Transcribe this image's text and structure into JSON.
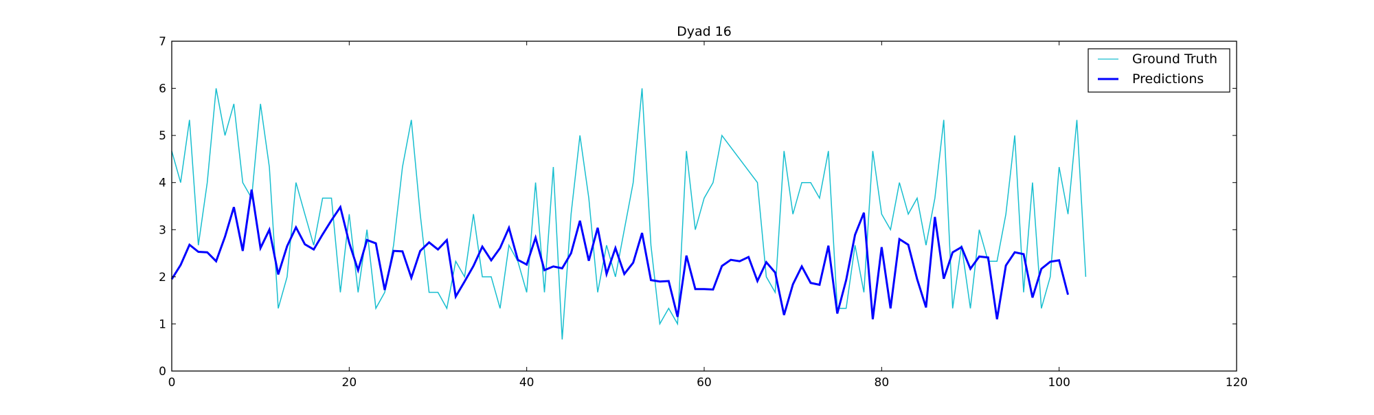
{
  "chart_data": {
    "type": "line",
    "title": "Dyad 16",
    "xlabel": "",
    "ylabel": "",
    "xlim": [
      0,
      120
    ],
    "ylim": [
      0,
      7
    ],
    "xticks": [
      0,
      20,
      40,
      60,
      80,
      100,
      120
    ],
    "yticks": [
      0,
      1,
      2,
      3,
      4,
      5,
      6,
      7
    ],
    "grid": false,
    "legend_position": "top-right",
    "series": [
      {
        "name": "Ground Truth",
        "color": "#17becf",
        "values": [
          4.67,
          4.0,
          5.33,
          2.67,
          4.0,
          6.0,
          5.0,
          5.67,
          4.0,
          3.67,
          5.67,
          4.33,
          1.33,
          2.0,
          4.0,
          3.33,
          2.67,
          3.67,
          3.67,
          1.67,
          3.33,
          1.67,
          3.0,
          1.33,
          1.67,
          2.67,
          4.33,
          5.33,
          3.33,
          1.67,
          1.67,
          1.33,
          2.33,
          2.0,
          3.33,
          2.0,
          2.0,
          1.33,
          2.67,
          2.33,
          1.67,
          4.0,
          1.67,
          4.33,
          0.67,
          3.33,
          5.0,
          3.67,
          1.67,
          2.67,
          2.0,
          3.0,
          4.0,
          6.0,
          2.67,
          1.0,
          1.33,
          1.0,
          4.67,
          3.0,
          3.67,
          4.0,
          5.0,
          4.75,
          4.5,
          4.25,
          4.0,
          2.0,
          1.67,
          4.67,
          3.33,
          4.0,
          4.0,
          3.67,
          4.67,
          1.33,
          1.33,
          2.67,
          1.67,
          4.67,
          3.33,
          3.0,
          4.0,
          3.33,
          3.67,
          2.67,
          3.67,
          5.33,
          1.33,
          2.67,
          1.33,
          3.0,
          2.33,
          2.33,
          3.33,
          5.0,
          1.67,
          4.0,
          1.33,
          2.0,
          4.33,
          3.33,
          5.33,
          2.0
        ]
      },
      {
        "name": "Predictions",
        "color": "#0000ff",
        "values": [
          1.95,
          2.25,
          2.68,
          2.53,
          2.52,
          2.33,
          2.85,
          3.48,
          2.55,
          3.85,
          2.61,
          3.0,
          2.05,
          2.65,
          3.05,
          2.69,
          2.58,
          2.9,
          3.2,
          3.48,
          2.72,
          2.14,
          2.78,
          2.71,
          1.72,
          2.55,
          2.54,
          1.98,
          2.55,
          2.73,
          2.58,
          2.78,
          1.58,
          1.9,
          2.23,
          2.64,
          2.35,
          2.61,
          3.04,
          2.36,
          2.26,
          2.83,
          2.14,
          2.22,
          2.18,
          2.5,
          3.19,
          2.34,
          3.04,
          2.06,
          2.61,
          2.06,
          2.3,
          2.93,
          1.93,
          1.9,
          1.91,
          1.15,
          2.45,
          1.74,
          1.74,
          1.73,
          2.23,
          2.36,
          2.33,
          2.42,
          1.91,
          2.31,
          2.09,
          1.19,
          1.84,
          2.22,
          1.87,
          1.83,
          2.66,
          1.22,
          1.93,
          2.89,
          3.36,
          1.1,
          2.63,
          1.33,
          2.8,
          2.68,
          1.95,
          1.35,
          3.27,
          1.96,
          2.52,
          2.63,
          2.17,
          2.43,
          2.41,
          1.1,
          2.24,
          2.52,
          2.48,
          1.56,
          2.17,
          2.32,
          2.35,
          1.62
        ]
      }
    ]
  }
}
